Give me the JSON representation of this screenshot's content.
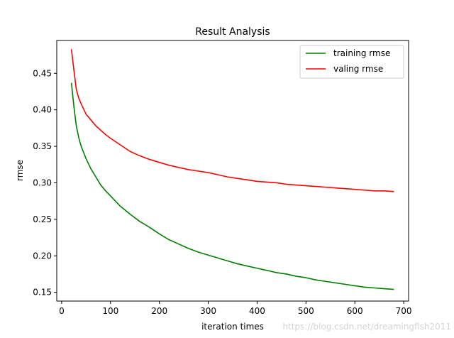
{
  "chart_data": {
    "type": "line",
    "title": "Result Analysis",
    "xlabel": "iteration times",
    "ylabel": "rmse",
    "xlim": [
      -10,
      710
    ],
    "ylim": [
      0.138,
      0.495
    ],
    "xticks": [
      0,
      100,
      200,
      300,
      400,
      500,
      600,
      700
    ],
    "yticks": [
      0.15,
      0.2,
      0.25,
      0.3,
      0.35,
      0.4,
      0.45
    ],
    "ytick_labels": [
      "0.15",
      "0.20",
      "0.25",
      "0.30",
      "0.35",
      "0.40",
      "0.45"
    ],
    "legend_position": "upper right",
    "grid": false,
    "series": [
      {
        "name": "training rmse",
        "color": "#008000",
        "x": [
          20,
          25,
          30,
          35,
          40,
          50,
          60,
          70,
          80,
          90,
          100,
          120,
          140,
          160,
          180,
          200,
          220,
          240,
          260,
          280,
          300,
          320,
          340,
          360,
          380,
          400,
          420,
          440,
          460,
          480,
          500,
          520,
          540,
          560,
          580,
          600,
          620,
          640,
          660,
          680
        ],
        "y": [
          0.437,
          0.405,
          0.378,
          0.362,
          0.35,
          0.333,
          0.319,
          0.308,
          0.297,
          0.289,
          0.282,
          0.268,
          0.257,
          0.247,
          0.239,
          0.23,
          0.222,
          0.216,
          0.21,
          0.205,
          0.201,
          0.197,
          0.193,
          0.189,
          0.186,
          0.183,
          0.18,
          0.177,
          0.175,
          0.172,
          0.17,
          0.167,
          0.165,
          0.163,
          0.161,
          0.159,
          0.157,
          0.156,
          0.155,
          0.154
        ]
      },
      {
        "name": "valing rmse",
        "color": "#ff0000",
        "x": [
          20,
          25,
          30,
          35,
          40,
          50,
          60,
          70,
          80,
          90,
          100,
          120,
          140,
          160,
          180,
          200,
          220,
          240,
          260,
          280,
          300,
          320,
          340,
          360,
          380,
          400,
          420,
          440,
          460,
          480,
          500,
          520,
          540,
          560,
          580,
          600,
          620,
          640,
          660,
          680
        ],
        "y": [
          0.483,
          0.455,
          0.428,
          0.416,
          0.408,
          0.394,
          0.386,
          0.378,
          0.372,
          0.366,
          0.361,
          0.352,
          0.343,
          0.337,
          0.332,
          0.328,
          0.324,
          0.321,
          0.318,
          0.316,
          0.314,
          0.311,
          0.308,
          0.306,
          0.304,
          0.302,
          0.301,
          0.3,
          0.298,
          0.297,
          0.296,
          0.295,
          0.294,
          0.293,
          0.292,
          0.291,
          0.29,
          0.289,
          0.289,
          0.288
        ]
      }
    ]
  },
  "watermark": "https://blog.csdn.net/dreamingfish2011"
}
